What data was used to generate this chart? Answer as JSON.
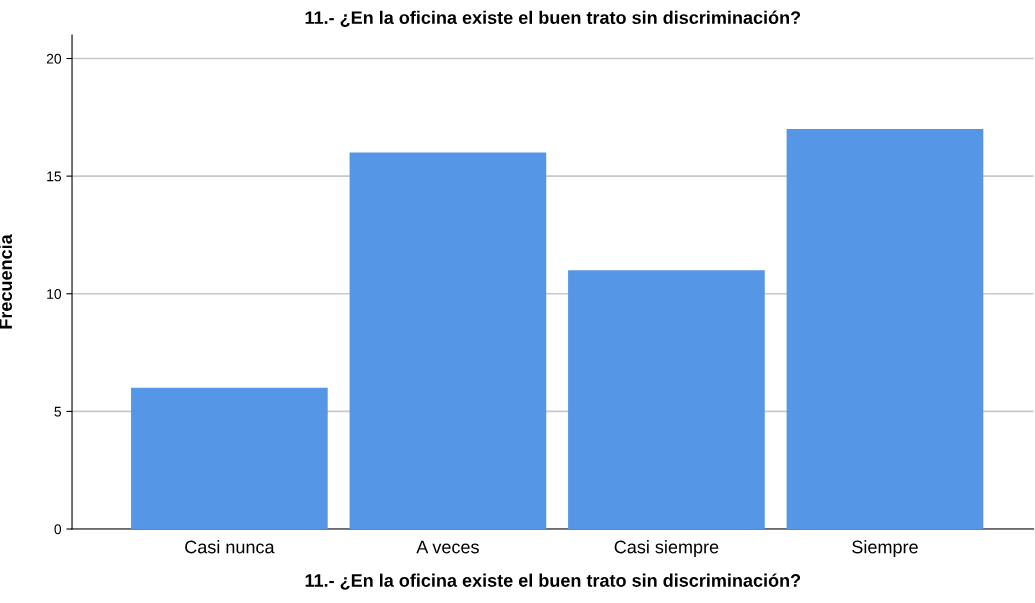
{
  "chart_data": {
    "type": "bar",
    "title": "11.- ¿En la oficina existe el buen trato sin discriminación?",
    "xlabel": "11.- ¿En la oficina existe el buen trato sin discriminación?",
    "ylabel": "Frecuencia",
    "categories": [
      "Casi nunca",
      "A veces",
      "Casi siempre",
      "Siempre"
    ],
    "values": [
      6,
      16,
      11,
      17
    ],
    "color": "#5596e6",
    "ylim": [
      0,
      21
    ],
    "yticks": [
      0,
      5,
      10,
      15,
      20
    ],
    "grid": "y"
  }
}
